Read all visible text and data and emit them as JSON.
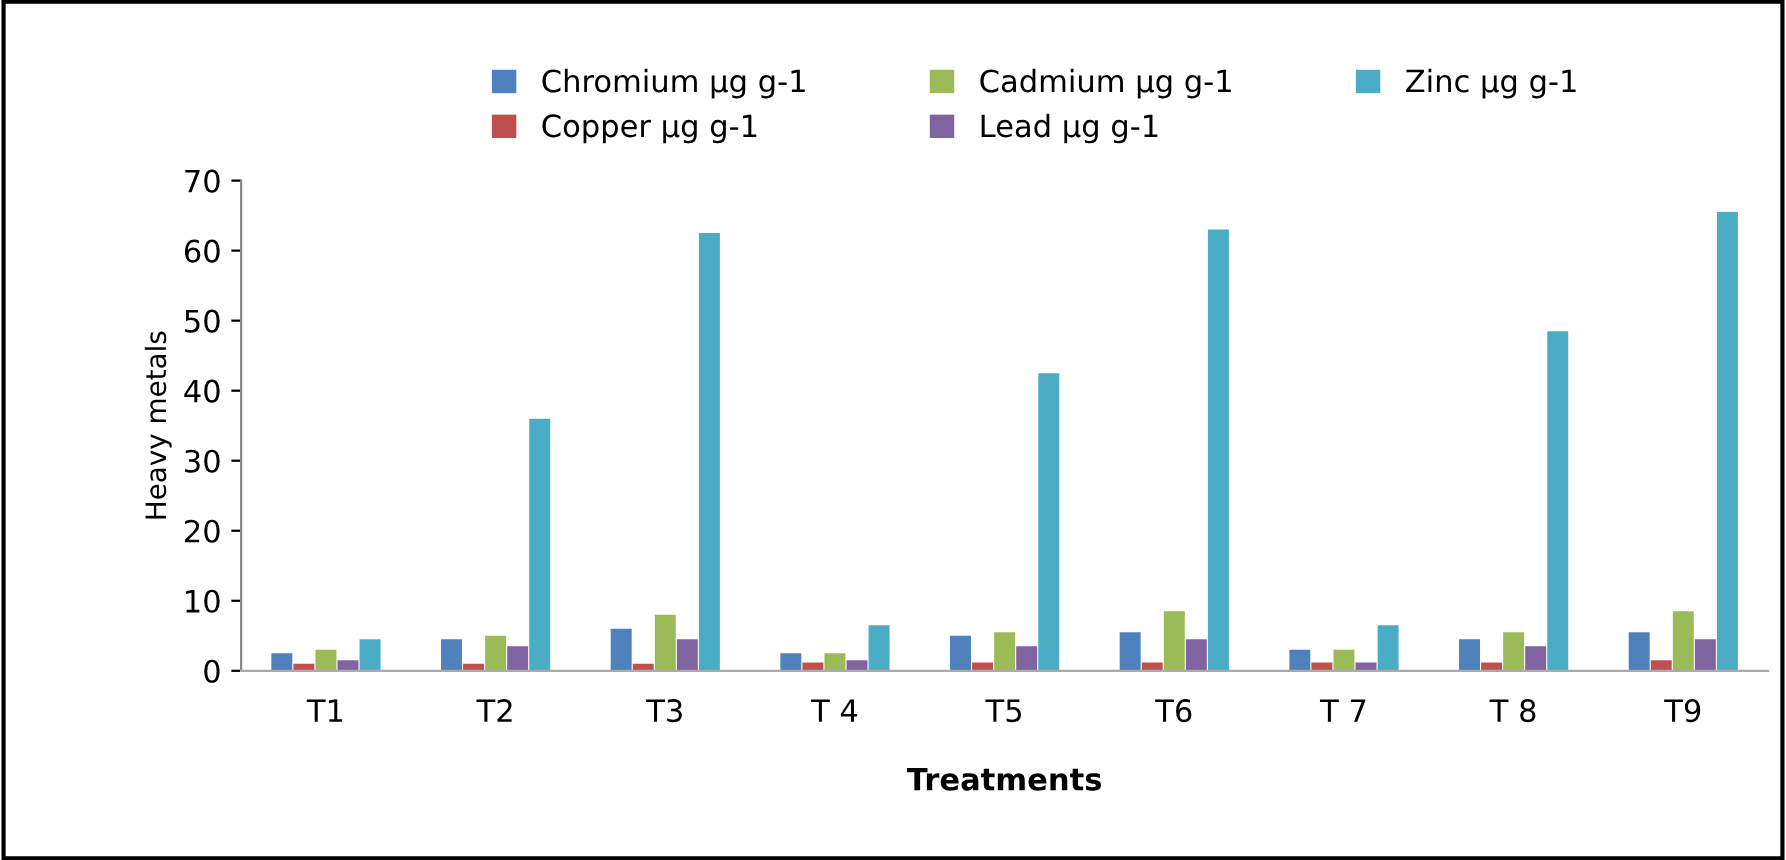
{
  "chart_data": {
    "type": "bar",
    "xlabel": "Treatments",
    "ylabel": "Heavy metals",
    "categories": [
      "T1",
      "T2",
      "T3",
      "T 4",
      "T5",
      "T6",
      "T 7",
      "T 8",
      "T9"
    ],
    "series": [
      {
        "name": "Chromium µg g-1",
        "color": "#4f81bd",
        "values": [
          2.5,
          4.5,
          6,
          2.5,
          5,
          5.5,
          3,
          4.5,
          5.5
        ]
      },
      {
        "name": "Copper µg g-1",
        "color": "#c0504d",
        "values": [
          1,
          1,
          1,
          1.2,
          1.2,
          1.2,
          1.2,
          1.2,
          1.5
        ]
      },
      {
        "name": "Cadmium µg g-1",
        "color": "#9bbb59",
        "values": [
          3,
          5,
          8,
          2.5,
          5.5,
          8.5,
          3,
          5.5,
          8.5
        ]
      },
      {
        "name": "Lead µg g-1",
        "color": "#8064a2",
        "values": [
          1.5,
          3.5,
          4.5,
          1.5,
          3.5,
          4.5,
          1.2,
          3.5,
          4.5
        ]
      },
      {
        "name": "Zinc µg g-1",
        "color": "#4bacc6",
        "values": [
          4.5,
          36,
          62.5,
          6.5,
          42.5,
          63,
          6.5,
          48.5,
          65.5
        ]
      }
    ],
    "ylim": [
      0,
      70
    ],
    "yticks": [
      0,
      10,
      20,
      30,
      40,
      50,
      60,
      70
    ],
    "grid": false,
    "legend": "top"
  }
}
